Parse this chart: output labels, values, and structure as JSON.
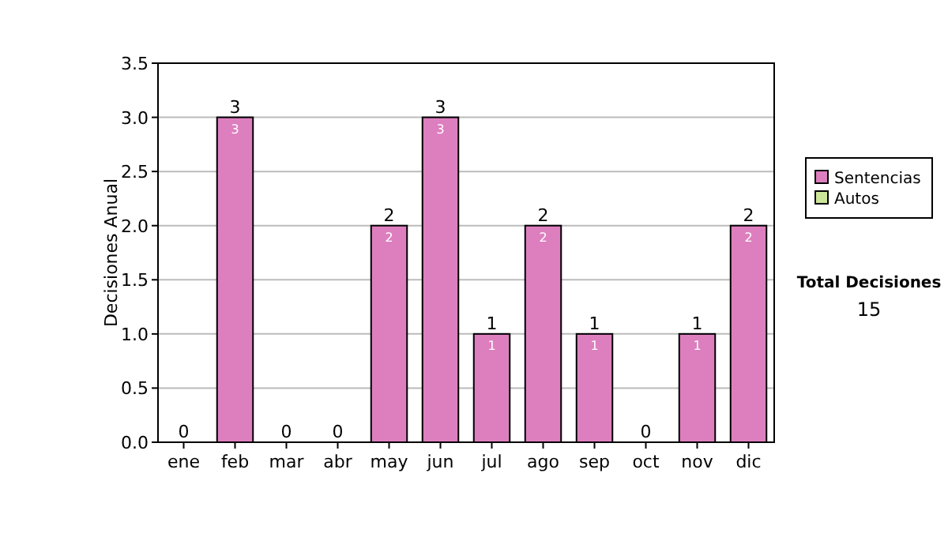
{
  "chart_data": {
    "type": "bar",
    "ylabel": "Decisiones Anual",
    "categories": [
      "ene",
      "feb",
      "mar",
      "abr",
      "may",
      "jun",
      "jul",
      "ago",
      "sep",
      "oct",
      "nov",
      "dic"
    ],
    "series": [
      {
        "name": "Sentencias",
        "color": "#dd7fbf",
        "values": [
          0,
          3,
          0,
          0,
          2,
          3,
          1,
          2,
          1,
          0,
          1,
          2
        ],
        "value_labels": [
          null,
          "3",
          null,
          null,
          "2",
          "3",
          "1",
          "2",
          "1",
          null,
          "1",
          "2"
        ]
      },
      {
        "name": "Autos",
        "color": "#cce699",
        "values": [
          0,
          0,
          0,
          0,
          0,
          0,
          0,
          0,
          0,
          0,
          0,
          0
        ]
      }
    ],
    "stacked": true,
    "totals": [
      "0",
      "3",
      "0",
      "0",
      "2",
      "3",
      "1",
      "2",
      "1",
      "0",
      "1",
      "2"
    ],
    "ylim": [
      0,
      3.5
    ],
    "yticks": [
      {
        "value": 0,
        "label": "0.0"
      },
      {
        "value": 0.5,
        "label": "0.5"
      },
      {
        "value": 1,
        "label": "1.0"
      },
      {
        "value": 1.5,
        "label": "1.5"
      },
      {
        "value": 2,
        "label": "2.0"
      },
      {
        "value": 2.5,
        "label": "2.5"
      },
      {
        "value": 3,
        "label": "3.0"
      },
      {
        "value": 3.5,
        "label": "3.5"
      }
    ],
    "grid": "y",
    "legend": "right",
    "annotations": [
      "Total Decisiones",
      "15"
    ]
  }
}
